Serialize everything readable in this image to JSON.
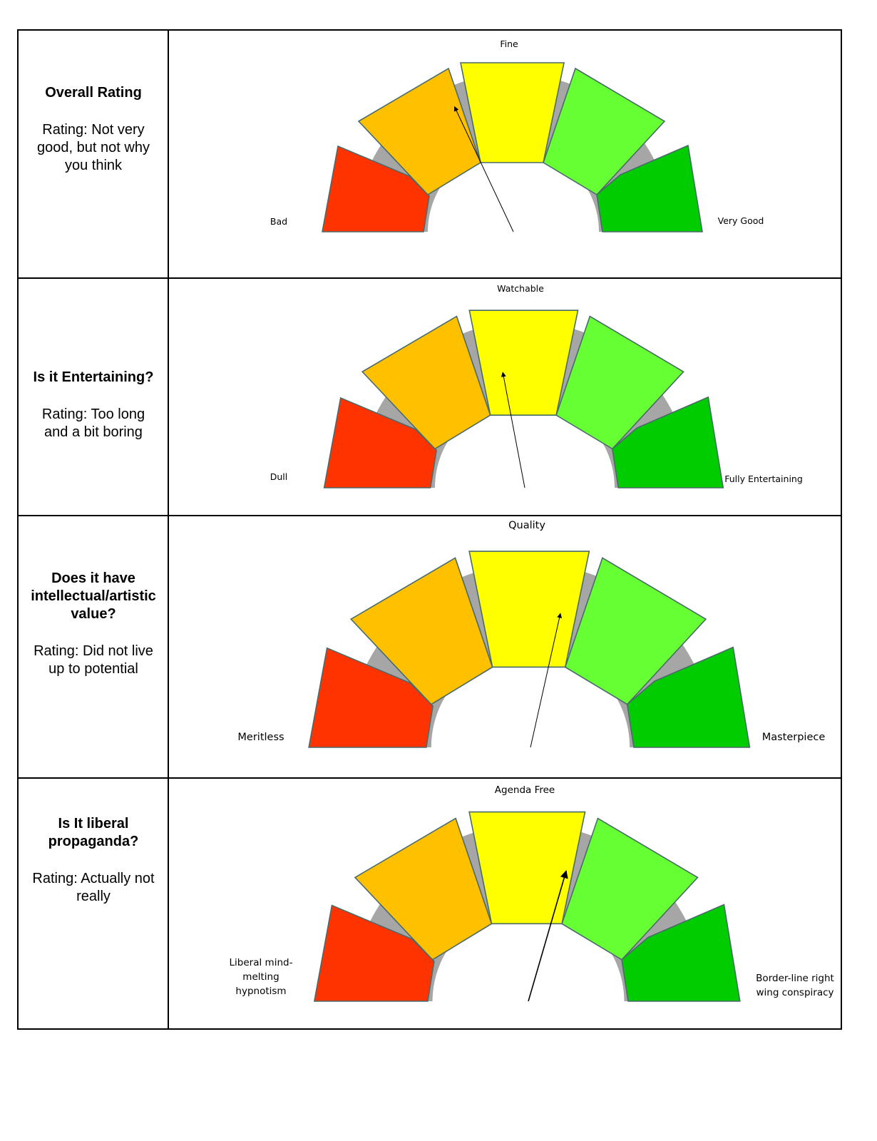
{
  "colors": {
    "bad": "#ff3300",
    "poor": "#ffc000",
    "mid": "#ffff00",
    "good": "#66ff33",
    "best": "#00cc00",
    "arc": "#a6a6a6",
    "needle": "#000000"
  },
  "rows": [
    {
      "title": "Overall Rating",
      "rating": "Rating: Not very good, but not why you think",
      "gauge": {
        "top_label": "Fine",
        "left_label": "Bad",
        "right_label": "Very Good",
        "needle_position_percent": 36
      }
    },
    {
      "title": "Is it Entertaining?",
      "rating": "Rating: Too long and a bit boring",
      "gauge": {
        "top_label": "Watchable",
        "left_label": "Dull",
        "right_label": "Fully Entertaining",
        "needle_position_percent": 44
      }
    },
    {
      "title": "Does it have intellectual/artistic value?",
      "rating": "Rating: Did not live up to potential",
      "gauge": {
        "top_label": "Quality",
        "left_label": "Meritless",
        "right_label": "Masterpiece",
        "needle_position_percent": 57
      }
    },
    {
      "title": "Is It liberal propaganda?",
      "rating": "Rating: Actually not really",
      "gauge": {
        "top_label": "Agenda Free",
        "left_label": "Liberal mind-melting hypnotism",
        "right_label": "Border-line right wing conspiracy",
        "needle_position_percent": 59
      }
    }
  ]
}
